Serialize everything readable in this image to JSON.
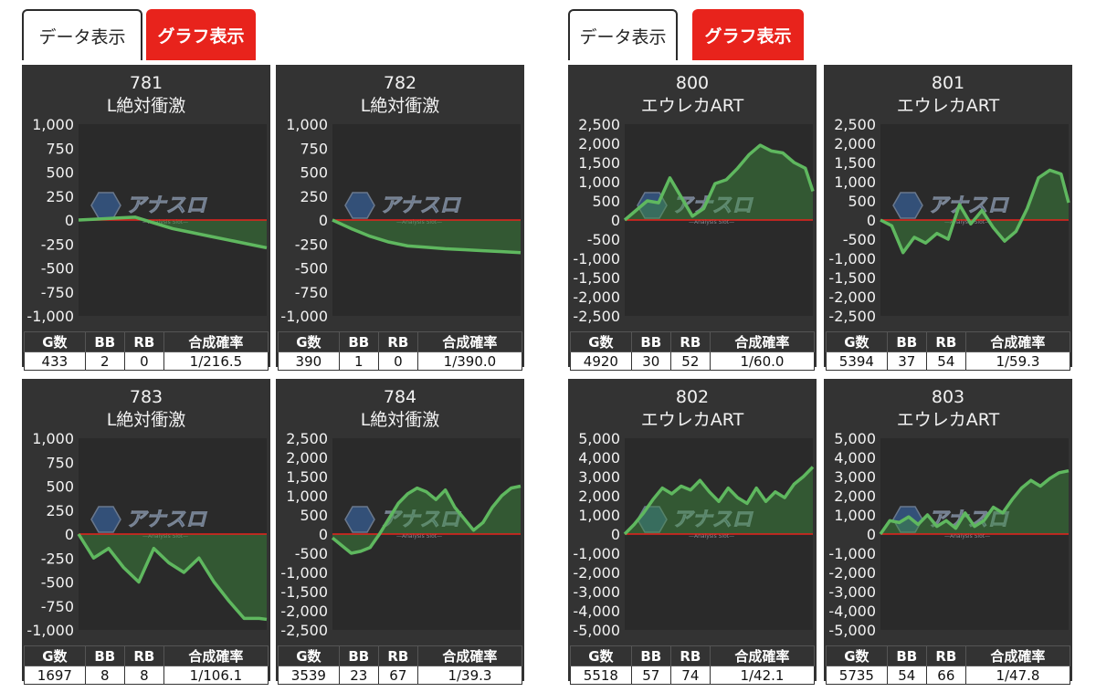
{
  "tabs": {
    "data_label": "データ表示",
    "graph_label": "グラフ表示"
  },
  "watermark": {
    "text": "アナスロ",
    "sub": "—Analysis Slot—"
  },
  "stat_headers": [
    "G数",
    "BB",
    "RB",
    "合成確率"
  ],
  "chart_data": [
    {
      "type": "area",
      "number": "781",
      "machine": "L絶対衝激",
      "ylim": [
        -1000,
        1000
      ],
      "yticks": [
        "1,000",
        "750",
        "500",
        "250",
        "0",
        "-250",
        "-500",
        "-750",
        "-1,000"
      ],
      "x": [
        0,
        10,
        20,
        30,
        40,
        50,
        60,
        70,
        80,
        90,
        100
      ],
      "y": [
        0,
        10,
        20,
        30,
        -30,
        -90,
        -130,
        -170,
        -210,
        -250,
        -290
      ],
      "stats": {
        "games": "433",
        "bb": "2",
        "rb": "0",
        "rate": "1/216.5"
      }
    },
    {
      "type": "area",
      "number": "782",
      "machine": "L絶対衝激",
      "ylim": [
        -1000,
        1000
      ],
      "yticks": [
        "1,000",
        "750",
        "500",
        "250",
        "0",
        "-250",
        "-500",
        "-750",
        "-1,000"
      ],
      "x": [
        0,
        10,
        20,
        30,
        40,
        50,
        60,
        70,
        80,
        90,
        100
      ],
      "y": [
        0,
        -90,
        -170,
        -230,
        -270,
        -285,
        -300,
        -310,
        -320,
        -330,
        -340
      ],
      "stats": {
        "games": "390",
        "bb": "1",
        "rb": "0",
        "rate": "1/390.0"
      }
    },
    {
      "type": "area",
      "number": "800",
      "machine": "エウレカART",
      "ylim": [
        -2500,
        2500
      ],
      "yticks": [
        "2,500",
        "2,000",
        "1,500",
        "1,000",
        "500",
        "0",
        "-500",
        "-1,000",
        "-1,500",
        "-2,000",
        "-2,500"
      ],
      "x": [
        0,
        6,
        12,
        18,
        24,
        30,
        36,
        42,
        48,
        54,
        60,
        66,
        72,
        78,
        84,
        90,
        96,
        100
      ],
      "y": [
        0,
        250,
        500,
        450,
        1100,
        600,
        100,
        300,
        950,
        1050,
        1350,
        1700,
        1950,
        1800,
        1750,
        1500,
        1350,
        750
      ],
      "stats": {
        "games": "4920",
        "bb": "30",
        "rb": "52",
        "rate": "1/60.0"
      }
    },
    {
      "type": "area",
      "number": "801",
      "machine": "エウレカART",
      "ylim": [
        -2500,
        2500
      ],
      "yticks": [
        "2,500",
        "2,000",
        "1,500",
        "1,000",
        "500",
        "0",
        "-500",
        "-1,000",
        "-1,500",
        "-2,000",
        "-2,500"
      ],
      "x": [
        0,
        6,
        12,
        18,
        24,
        30,
        36,
        42,
        48,
        54,
        60,
        66,
        72,
        78,
        84,
        90,
        96,
        100
      ],
      "y": [
        0,
        -150,
        -850,
        -450,
        -600,
        -350,
        -500,
        400,
        -100,
        250,
        -200,
        -550,
        -300,
        300,
        1100,
        1300,
        1200,
        450
      ],
      "stats": {
        "games": "5394",
        "bb": "37",
        "rb": "54",
        "rate": "1/59.3"
      }
    },
    {
      "type": "area",
      "number": "783",
      "machine": "L絶対衝激",
      "ylim": [
        -1000,
        1000
      ],
      "yticks": [
        "1,000",
        "750",
        "500",
        "250",
        "0",
        "-250",
        "-500",
        "-750",
        "-1,000"
      ],
      "x": [
        0,
        8,
        16,
        24,
        32,
        40,
        48,
        56,
        64,
        72,
        80,
        88,
        96,
        100
      ],
      "y": [
        0,
        -250,
        -150,
        -350,
        -500,
        -150,
        -300,
        -400,
        -250,
        -500,
        -700,
        -880,
        -880,
        -890
      ],
      "stats": {
        "games": "1697",
        "bb": "8",
        "rb": "8",
        "rate": "1/106.1"
      }
    },
    {
      "type": "area",
      "number": "784",
      "machine": "L絶対衝激",
      "ylim": [
        -2500,
        2500
      ],
      "yticks": [
        "2,500",
        "2,000",
        "1,500",
        "1,000",
        "500",
        "0",
        "-500",
        "-1,000",
        "-1,500",
        "-2,000",
        "-2,500"
      ],
      "x": [
        0,
        5,
        10,
        15,
        20,
        25,
        30,
        35,
        40,
        45,
        50,
        55,
        60,
        65,
        70,
        75,
        80,
        85,
        90,
        95,
        100
      ],
      "y": [
        -100,
        -300,
        -500,
        -450,
        -350,
        0,
        400,
        800,
        1050,
        1200,
        1100,
        900,
        1150,
        700,
        400,
        100,
        300,
        700,
        1000,
        1200,
        1250
      ],
      "stats": {
        "games": "3539",
        "bb": "23",
        "rb": "67",
        "rate": "1/39.3"
      }
    },
    {
      "type": "area",
      "number": "802",
      "machine": "エウレカART",
      "ylim": [
        -5000,
        5000
      ],
      "yticks": [
        "5,000",
        "4,000",
        "3,000",
        "2,000",
        "1,000",
        "0",
        "-1,000",
        "-2,000",
        "-3,000",
        "-4,000",
        "-5,000"
      ],
      "x": [
        0,
        5,
        10,
        15,
        20,
        25,
        30,
        35,
        40,
        45,
        50,
        55,
        60,
        65,
        70,
        75,
        80,
        85,
        90,
        95,
        100
      ],
      "y": [
        0,
        500,
        1100,
        1800,
        2400,
        2100,
        2500,
        2300,
        2800,
        2200,
        1700,
        2400,
        1900,
        1600,
        2400,
        1700,
        2200,
        1900,
        2600,
        3000,
        3500
      ],
      "stats": {
        "games": "5518",
        "bb": "57",
        "rb": "74",
        "rate": "1/42.1"
      }
    },
    {
      "type": "area",
      "number": "803",
      "machine": "エウレカART",
      "ylim": [
        -5000,
        5000
      ],
      "yticks": [
        "5,000",
        "4,000",
        "3,000",
        "2,000",
        "1,000",
        "0",
        "-1,000",
        "-2,000",
        "-3,000",
        "-4,000",
        "-5,000"
      ],
      "x": [
        0,
        5,
        10,
        15,
        20,
        25,
        30,
        35,
        40,
        45,
        50,
        55,
        60,
        65,
        70,
        75,
        80,
        85,
        90,
        95,
        100
      ],
      "y": [
        0,
        700,
        600,
        900,
        500,
        1000,
        400,
        700,
        300,
        1100,
        400,
        700,
        1400,
        1100,
        1800,
        2400,
        2800,
        2500,
        2900,
        3200,
        3300
      ],
      "stats": {
        "games": "5735",
        "bb": "54",
        "rb": "66",
        "rate": "1/47.8"
      }
    }
  ]
}
